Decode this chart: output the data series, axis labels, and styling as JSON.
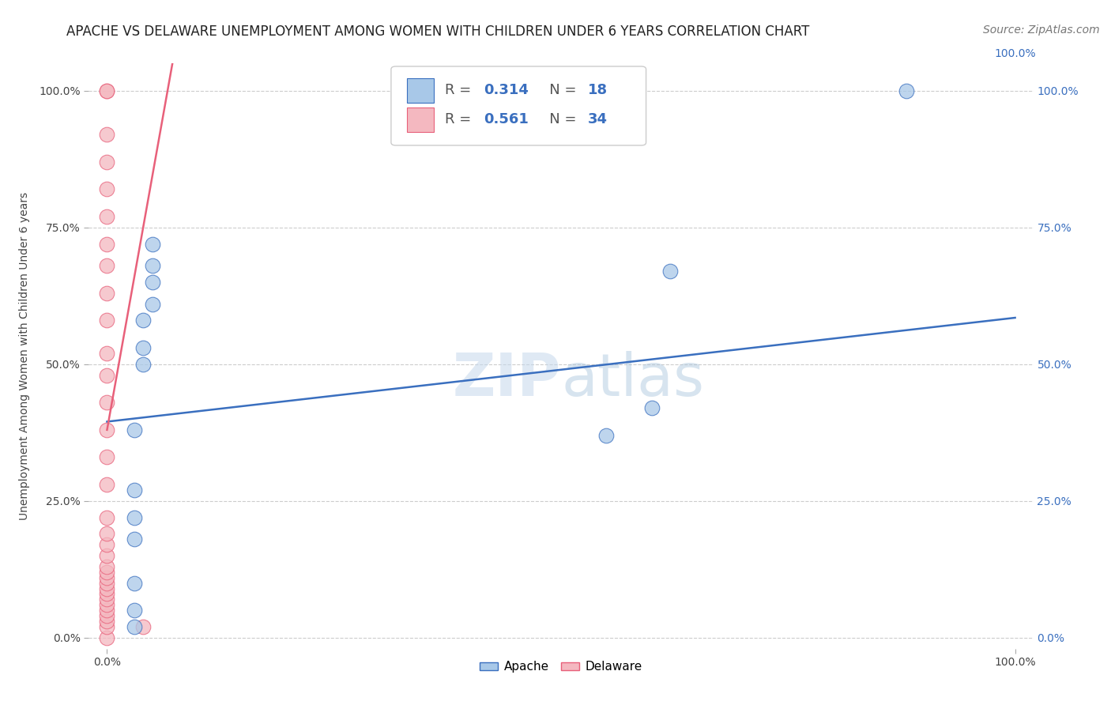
{
  "title": "APACHE VS DELAWARE UNEMPLOYMENT AMONG WOMEN WITH CHILDREN UNDER 6 YEARS CORRELATION CHART",
  "source_text": "Source: ZipAtlas.com",
  "ylabel": "Unemployment Among Women with Children Under 6 years",
  "xlabel": "",
  "xlim": [
    -0.02,
    1.02
  ],
  "ylim": [
    -0.02,
    1.05
  ],
  "xtick_positions": [
    0.0,
    1.0
  ],
  "xtick_labels": [
    "0.0%",
    "100.0%"
  ],
  "ytick_positions": [
    0.0,
    0.25,
    0.5,
    0.75,
    1.0
  ],
  "ytick_labels": [
    "0.0%",
    "25.0%",
    "50.0%",
    "75.0%",
    "100.0%"
  ],
  "grid_color": "#cccccc",
  "background_color": "#ffffff",
  "watermark_text": "ZIPatlas",
  "apache_color": "#a8c8e8",
  "delaware_color": "#f4b8c0",
  "apache_line_color": "#3a6fbf",
  "delaware_line_color": "#e8607a",
  "legend_R_apache": "0.314",
  "legend_N_apache": "18",
  "legend_R_delaware": "0.561",
  "legend_N_delaware": "34",
  "apache_scatter_x": [
    0.03,
    0.03,
    0.03,
    0.03,
    0.03,
    0.03,
    0.03,
    0.04,
    0.04,
    0.04,
    0.05,
    0.05,
    0.05,
    0.05,
    0.55,
    0.6,
    0.62,
    0.88
  ],
  "apache_scatter_y": [
    0.02,
    0.05,
    0.1,
    0.18,
    0.22,
    0.27,
    0.38,
    0.5,
    0.53,
    0.58,
    0.61,
    0.65,
    0.68,
    0.72,
    0.37,
    0.42,
    0.67,
    1.0
  ],
  "delaware_scatter_x": [
    0.0,
    0.0,
    0.0,
    0.0,
    0.0,
    0.0,
    0.0,
    0.0,
    0.0,
    0.0,
    0.0,
    0.0,
    0.0,
    0.0,
    0.0,
    0.0,
    0.0,
    0.0,
    0.0,
    0.0,
    0.0,
    0.0,
    0.0,
    0.0,
    0.0,
    0.0,
    0.0,
    0.0,
    0.0,
    0.0,
    0.0,
    0.0,
    0.0,
    0.04
  ],
  "delaware_scatter_y": [
    0.0,
    0.02,
    0.03,
    0.04,
    0.05,
    0.06,
    0.07,
    0.08,
    0.09,
    0.1,
    0.11,
    0.12,
    0.13,
    0.15,
    0.17,
    0.19,
    0.22,
    0.28,
    0.33,
    0.38,
    0.43,
    0.48,
    0.52,
    0.58,
    0.63,
    0.68,
    0.72,
    0.77,
    0.82,
    0.87,
    0.92,
    1.0,
    1.0,
    0.02
  ],
  "apache_line_x0": 0.0,
  "apache_line_y0": 0.395,
  "apache_line_x1": 1.0,
  "apache_line_y1": 0.585,
  "delaware_line_x0": 0.0,
  "delaware_line_y0": 0.38,
  "delaware_line_x1": 0.072,
  "delaware_line_y1": 1.05,
  "title_fontsize": 12,
  "axis_label_fontsize": 10,
  "tick_fontsize": 10,
  "legend_fontsize": 13,
  "source_fontsize": 10
}
